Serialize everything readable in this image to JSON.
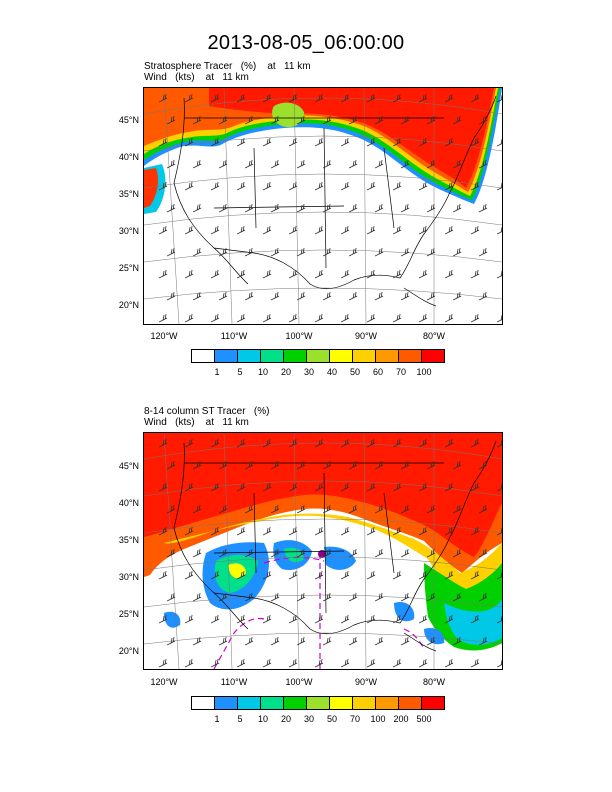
{
  "title": "2013-08-05_06:00:00",
  "panels": [
    {
      "line1": "Stratosphere Tracer   (%)    at   11 km",
      "line2": "Wind   (kts)    at   11 km",
      "lat_labels": [
        "45°N",
        "40°N",
        "35°N",
        "30°N",
        "25°N",
        "20°N"
      ],
      "lon_labels": [
        "120°W",
        "110°W",
        "100°W",
        "90°W",
        "80°W"
      ],
      "colorbar": {
        "colors": [
          "#ffffff",
          "#1e90ff",
          "#00c8e6",
          "#00e08a",
          "#00d000",
          "#9be02a",
          "#ffff00",
          "#ffd000",
          "#ff9900",
          "#ff5a00",
          "#ff0000"
        ],
        "labels": [
          "1",
          "5",
          "10",
          "20",
          "30",
          "40",
          "50",
          "60",
          "70",
          "100"
        ]
      }
    },
    {
      "line1": "8-14 column ST Tracer   (%)",
      "line2": "Wind   (kts)    at   11 km",
      "lat_labels": [
        "45°N",
        "40°N",
        "35°N",
        "30°N",
        "25°N",
        "20°N"
      ],
      "lon_labels": [
        "120°W",
        "110°W",
        "100°W",
        "90°W",
        "80°W"
      ],
      "colorbar": {
        "colors": [
          "#ffffff",
          "#1e90ff",
          "#00c8e6",
          "#00e08a",
          "#00d000",
          "#9be02a",
          "#ffff00",
          "#ffd000",
          "#ff9900",
          "#ff5a00",
          "#ff0000"
        ],
        "labels": [
          "1",
          "5",
          "10",
          "20",
          "30",
          "50",
          "70",
          "100",
          "200",
          "500"
        ]
      }
    }
  ]
}
